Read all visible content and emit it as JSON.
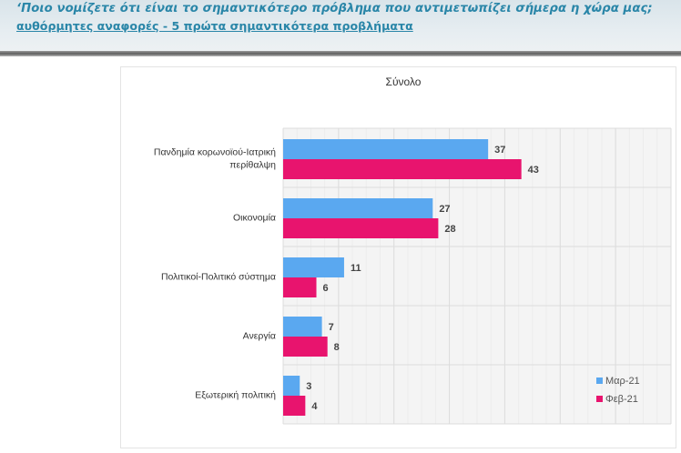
{
  "banner": {
    "question": "‘Ποιο νομίζετε ότι  είναι το σημαντικότερο πρόβλημα που αντιμετωπίζει σήμερα η χώρα μας;",
    "subtitle": "αυθόρμητες αναφορές - 5 πρώτα σημαντικότερα προβλήματα"
  },
  "chart_data": {
    "type": "bar",
    "orientation": "horizontal",
    "title": "Σύνολο",
    "xlabel": "",
    "ylabel": "",
    "xlim": [
      0,
      70
    ],
    "grid": true,
    "legend_position": "bottom-right",
    "categories": [
      [
        "Πανδημία κορωνοϊού-Ιατρική",
        "περίθαλψη"
      ],
      [
        "Οικονομία"
      ],
      [
        "Πολιτικοί-Πολιτικό σύστημα"
      ],
      [
        "Ανεργία"
      ],
      [
        "Εξωτερική πολιτική"
      ]
    ],
    "series": [
      {
        "name": "Μαρ-21",
        "color": "#5aa8f0",
        "values": [
          37,
          27,
          11,
          7,
          3
        ]
      },
      {
        "name": "Φεβ-21",
        "color": "#e8146e",
        "values": [
          43,
          28,
          6,
          8,
          4
        ]
      }
    ]
  }
}
